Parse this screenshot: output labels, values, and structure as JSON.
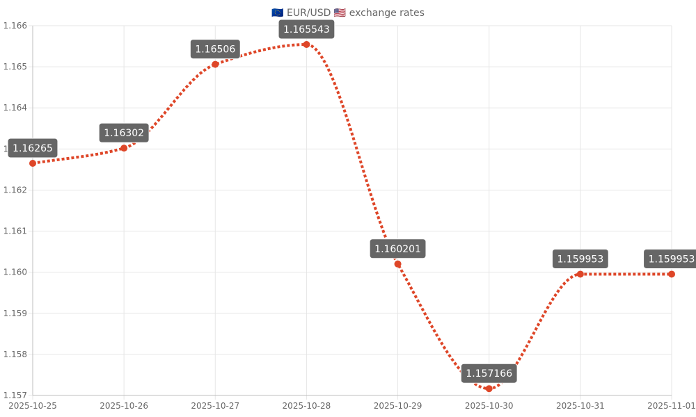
{
  "chart_data": {
    "type": "line",
    "title": "🇪🇺 EUR/USD 🇺🇸 exchange rates",
    "xlabel": "",
    "ylabel": "",
    "x": [
      "2025-10-25",
      "2025-10-26",
      "2025-10-27",
      "2025-10-28",
      "2025-10-29",
      "2025-10-30",
      "2025-10-31",
      "2025-11-01"
    ],
    "series": [
      {
        "values": [
          1.16265,
          1.16302,
          1.16506,
          1.165543,
          1.160201,
          1.157166,
          1.159953,
          1.159953
        ],
        "labels": [
          "1.16265",
          "1.16302",
          "1.16506",
          "1.165543",
          "1.160201",
          "1.157166",
          "1.159953",
          "1.159953"
        ]
      }
    ],
    "ylim": [
      1.157,
      1.166
    ],
    "yticks": [
      "1.157",
      "1.158",
      "1.159",
      "1.160",
      "1.161",
      "1.162",
      "1.163",
      "1.164",
      "1.165",
      "1.166"
    ],
    "line_style": "dotted",
    "curve": "smooth",
    "grid": true,
    "legend": "none",
    "colors": {
      "line": "#de4628",
      "point": "#de4628",
      "label_bg": "#666666",
      "label_text": "#ffffff",
      "grid": "#e6e6e6",
      "axis": "#bfbfbf",
      "text": "#666666"
    }
  }
}
